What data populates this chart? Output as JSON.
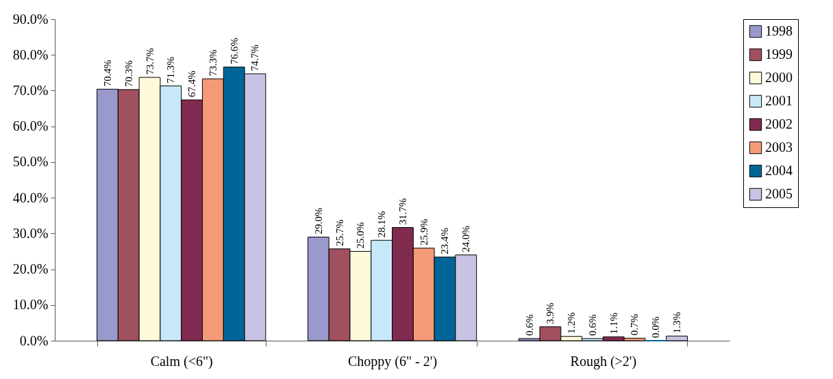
{
  "chart_data": {
    "type": "bar",
    "categories": [
      "Calm (<6\")",
      "Choppy (6\" - 2')",
      "Rough (>2')"
    ],
    "ylim": [
      0,
      90
    ],
    "yticks": [
      {
        "value": 0,
        "label": "0.0%"
      },
      {
        "value": 10,
        "label": "10.0%"
      },
      {
        "value": 20,
        "label": "20.0%"
      },
      {
        "value": 30,
        "label": "30.0%"
      },
      {
        "value": 40,
        "label": "40.0%"
      },
      {
        "value": 50,
        "label": "50.0%"
      },
      {
        "value": 60,
        "label": "60.0%"
      },
      {
        "value": 70,
        "label": "70.0%"
      },
      {
        "value": 80,
        "label": "80.0%"
      },
      {
        "value": 90,
        "label": "90.0%"
      }
    ],
    "grid": false,
    "legend": "right",
    "series": [
      {
        "name": "1998",
        "color": "#9999cc",
        "values": [
          70.4,
          29.0,
          0.6
        ],
        "value_labels": [
          "70.4%",
          "29.0%",
          "0.6%"
        ]
      },
      {
        "name": "1999",
        "color": "#a0505f",
        "values": [
          70.3,
          25.7,
          3.9
        ],
        "value_labels": [
          "70.3%",
          "25.7%",
          "3.9%"
        ]
      },
      {
        "name": "2000",
        "color": "#fffadc",
        "values": [
          73.7,
          25.0,
          1.2
        ],
        "value_labels": [
          "73.7%",
          "25.0%",
          "1.2%"
        ]
      },
      {
        "name": "2001",
        "color": "#c6e8f8",
        "values": [
          71.3,
          28.1,
          0.6
        ],
        "value_labels": [
          "71.3%",
          "28.1%",
          "0.6%"
        ]
      },
      {
        "name": "2002",
        "color": "#802a50",
        "values": [
          67.4,
          31.7,
          1.1
        ],
        "value_labels": [
          "67.4%",
          "31.7%",
          "1.1%"
        ]
      },
      {
        "name": "2003",
        "color": "#f59a78",
        "values": [
          73.3,
          25.9,
          0.7
        ],
        "value_labels": [
          "73.3%",
          "25.9%",
          "0.7%"
        ]
      },
      {
        "name": "2004",
        "color": "#006699",
        "values": [
          76.6,
          23.4,
          0.0
        ],
        "value_labels": [
          "76.6%",
          "23.4%",
          "0.0%"
        ]
      },
      {
        "name": "2005",
        "color": "#c7c3e3",
        "values": [
          74.7,
          24.0,
          1.3
        ],
        "value_labels": [
          "74.7%",
          "24.0%",
          "1.3%"
        ]
      }
    ]
  }
}
